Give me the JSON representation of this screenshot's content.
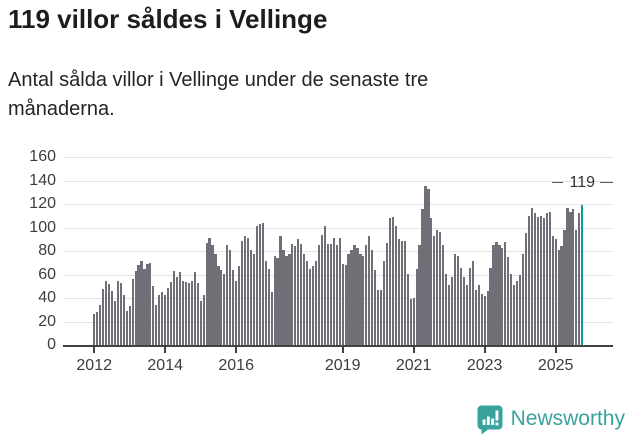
{
  "header": {
    "title": "119 villor såldes i Vellinge",
    "subtitle": "Antal sålda villor i Vellinge under de senaste tre månaderna."
  },
  "chart_data": {
    "type": "bar",
    "title": "119 villor såldes i Vellinge",
    "subtitle": "Antal sålda villor i Vellinge under de senaste tre månaderna.",
    "xlabel": "",
    "ylabel": "",
    "ylim": [
      0,
      160
    ],
    "yticks": [
      0,
      20,
      40,
      60,
      80,
      100,
      120,
      140,
      160
    ],
    "grid": "horizontal",
    "legend": "none",
    "x_start": "2012-01",
    "frequency": "monthly",
    "values": [
      27,
      28,
      34,
      48,
      55,
      52,
      46,
      38,
      55,
      53,
      43,
      29,
      33,
      56,
      63,
      68,
      72,
      65,
      69,
      70,
      50,
      34,
      43,
      45,
      43,
      49,
      54,
      63,
      58,
      62,
      55,
      54,
      53,
      55,
      62,
      53,
      38,
      43,
      87,
      91,
      85,
      78,
      67,
      64,
      61,
      85,
      81,
      64,
      55,
      67,
      89,
      93,
      91,
      81,
      78,
      101,
      103,
      104,
      72,
      65,
      45,
      76,
      74,
      93,
      81,
      76,
      78,
      86,
      84,
      90,
      86,
      78,
      72,
      65,
      67,
      72,
      85,
      94,
      101,
      86,
      86,
      91,
      85,
      91,
      69,
      68,
      78,
      81,
      85,
      83,
      78,
      76,
      85,
      93,
      81,
      64,
      47,
      47,
      72,
      87,
      108,
      109,
      101,
      90,
      89,
      89,
      61,
      39,
      40,
      65,
      85,
      116,
      135,
      133,
      108,
      93,
      98,
      96,
      85,
      61,
      51,
      58,
      78,
      76,
      66,
      58,
      51,
      66,
      72,
      47,
      51,
      44,
      42,
      46,
      66,
      85,
      88,
      85,
      83,
      88,
      75,
      61,
      51,
      55,
      60,
      78,
      95,
      110,
      117,
      112,
      109,
      110,
      108,
      112,
      113,
      93,
      90,
      81,
      84,
      98,
      117,
      113,
      116,
      98,
      112,
      119
    ],
    "highlight_index": 165,
    "annotation": {
      "label": "119",
      "value": 119
    },
    "xticks": [
      {
        "label": "2012",
        "month_index": 0
      },
      {
        "label": "2014",
        "month_index": 24
      },
      {
        "label": "2016",
        "month_index": 48
      },
      {
        "label": "2019",
        "month_index": 84
      },
      {
        "label": "2021",
        "month_index": 108
      },
      {
        "label": "2023",
        "month_index": 132
      },
      {
        "label": "2025",
        "month_index": 156
      }
    ],
    "colors": {
      "bar": "#6f6f78",
      "highlight": "#0a9b9e",
      "grid": "#e3e3e3",
      "axis": "#424242",
      "text": "#3d3d3d"
    }
  },
  "footer": {
    "brand": "Newsworthy",
    "brand_color": "#3aa29d",
    "logo_icon": "newsworthy-bubble-barchart-icon"
  }
}
